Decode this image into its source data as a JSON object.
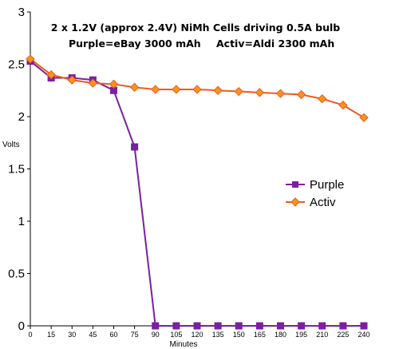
{
  "chart_data": {
    "type": "line",
    "title_line1": "2 x 1.2V (approx 2.4V) NiMh Cells driving 0.5A bulb",
    "title_line2_left": "Purple=eBay 3000 mAh",
    "title_line2_right": "Activ=Aldi 2300 mAh",
    "xlabel": "Minutes",
    "ylabel": "Volts",
    "x": [
      0,
      15,
      30,
      45,
      60,
      75,
      90,
      105,
      120,
      135,
      150,
      165,
      180,
      195,
      210,
      225,
      240
    ],
    "x_tick_labels": [
      "0",
      "15",
      "30",
      "45",
      "60",
      "75",
      "90",
      "105",
      "120",
      "135",
      "150",
      "165",
      "180",
      "195",
      "210",
      "225",
      "240"
    ],
    "y_ticks": [
      0,
      0.5,
      1,
      1.5,
      2,
      2.5,
      3
    ],
    "y_tick_labels": [
      "0",
      "0.5",
      "1",
      "1.5",
      "2",
      "2.5",
      "3"
    ],
    "ylim": [
      0,
      3
    ],
    "xlim": [
      0,
      240
    ],
    "grid": false,
    "legend_position": "right",
    "series": [
      {
        "name": "Purple",
        "color": "#7b1fa2",
        "marker": "square",
        "values": [
          2.53,
          2.37,
          2.37,
          2.35,
          2.25,
          1.71,
          0,
          0,
          0,
          0,
          0,
          0,
          0,
          0,
          0,
          0,
          0
        ]
      },
      {
        "name": "Activ",
        "color": "#ef5a1e",
        "marker_fill": "#f7941d",
        "marker": "diamond",
        "values": [
          2.55,
          2.4,
          2.35,
          2.32,
          2.31,
          2.28,
          2.26,
          2.26,
          2.26,
          2.25,
          2.24,
          2.23,
          2.22,
          2.21,
          2.17,
          2.11,
          1.99
        ]
      }
    ]
  }
}
